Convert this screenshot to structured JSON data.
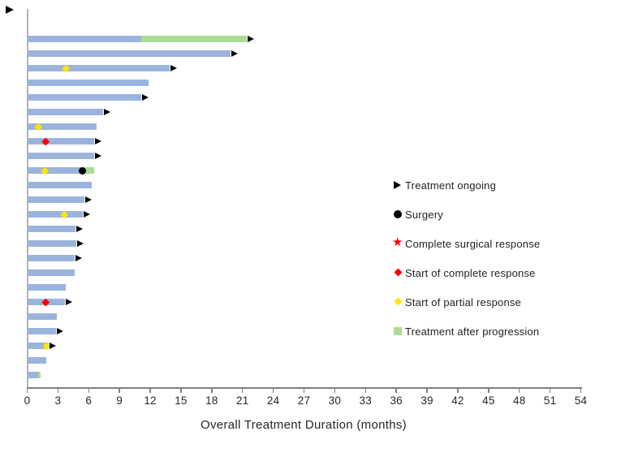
{
  "colors": {
    "bar_blue": "#9AB4DC",
    "progression_green": "#A9DC96",
    "marker_red": "#FF0000",
    "marker_yellow": "#FFE500",
    "marker_black": "#000000",
    "axis_y": "#B3B3B3",
    "axis_x": "#7F7F7F",
    "text": "#262626"
  },
  "chart_data": {
    "type": "bar",
    "variant": "swimmer-plot",
    "orientation": "horizontal",
    "title": "",
    "xlabel": "Overall Treatment Duration (months)",
    "ylabel": "",
    "xlim": [
      0,
      54
    ],
    "xticks": [
      0,
      3,
      6,
      9,
      12,
      15,
      18,
      21,
      24,
      27,
      30,
      33,
      36,
      39,
      42,
      45,
      48,
      51,
      54
    ],
    "grid": false,
    "legend_position": "right",
    "legend": [
      {
        "symbol": "triangle-right",
        "color_key": "marker_black",
        "label": "Treatment ongoing"
      },
      {
        "symbol": "circle",
        "color_key": "marker_black",
        "label": "Surgery"
      },
      {
        "symbol": "star",
        "color_key": "marker_red",
        "label": "Complete surgical response"
      },
      {
        "symbol": "diamond",
        "color_key": "marker_red",
        "label": "Start of complete response"
      },
      {
        "symbol": "diamond",
        "color_key": "marker_yellow",
        "label": "Start of partial response"
      },
      {
        "symbol": "square",
        "color_key": "progression_green",
        "label": "Treatment after progression"
      }
    ],
    "patients": [
      {
        "duration": 21.4,
        "progression_at": 11.1,
        "ongoing": true,
        "markers": []
      },
      {
        "duration": 19.8,
        "ongoing": true,
        "markers": []
      },
      {
        "duration": 13.9,
        "ongoing": true,
        "markers": [
          {
            "type": "partial_response",
            "at": 3.8
          }
        ]
      },
      {
        "duration": 11.8,
        "ongoing": false,
        "markers": []
      },
      {
        "duration": 11.1,
        "ongoing": true,
        "markers": []
      },
      {
        "duration": 7.4,
        "ongoing": true,
        "markers": []
      },
      {
        "duration": 6.8,
        "ongoing": false,
        "markers": [
          {
            "type": "partial_response",
            "at": 1.1
          }
        ]
      },
      {
        "duration": 6.5,
        "ongoing": true,
        "markers": [
          {
            "type": "complete_response",
            "at": 1.8
          }
        ]
      },
      {
        "duration": 6.5,
        "ongoing": true,
        "markers": []
      },
      {
        "duration": 6.5,
        "progression_at": 5.6,
        "ongoing": false,
        "markers": [
          {
            "type": "partial_response",
            "at": 1.7
          },
          {
            "type": "surgery",
            "at": 5.4
          }
        ]
      },
      {
        "duration": 6.3,
        "ongoing": false,
        "markers": []
      },
      {
        "duration": 5.6,
        "ongoing": true,
        "markers": []
      },
      {
        "duration": 5.4,
        "ongoing": true,
        "markers": [
          {
            "type": "partial_response",
            "at": 3.6
          }
        ]
      },
      {
        "duration": 4.7,
        "ongoing": true,
        "markers": []
      },
      {
        "duration": 4.8,
        "ongoing": true,
        "markers": []
      },
      {
        "duration": 4.6,
        "ongoing": true,
        "markers": []
      },
      {
        "duration": 4.6,
        "ongoing": false,
        "markers": []
      },
      {
        "duration": 3.8,
        "ongoing": false,
        "markers": []
      },
      {
        "duration": 3.7,
        "ongoing": true,
        "markers": [
          {
            "type": "complete_response",
            "at": 1.8
          }
        ]
      },
      {
        "duration": 2.9,
        "ongoing": false,
        "markers": []
      },
      {
        "duration": 2.8,
        "ongoing": true,
        "markers": []
      },
      {
        "duration": 2.1,
        "ongoing": true,
        "markers": [
          {
            "type": "partial_response",
            "at": 1.9
          }
        ]
      },
      {
        "duration": 1.9,
        "ongoing": false,
        "markers": []
      },
      {
        "duration": 1.3,
        "progression_at": 1.1,
        "ongoing": false,
        "markers": []
      }
    ]
  }
}
